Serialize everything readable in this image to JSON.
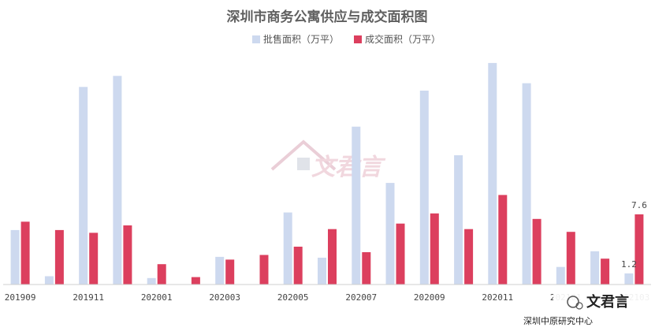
{
  "chart_data": {
    "type": "bar",
    "title": "深圳市商务公寓供应与成交面积图",
    "categories": [
      "201909",
      "201910",
      "201911",
      "201912",
      "202001",
      "202002",
      "202003",
      "202004",
      "202005",
      "202006",
      "202007",
      "202008",
      "202009",
      "202010",
      "202011",
      "202012",
      "202101",
      "202102",
      "202103"
    ],
    "x_tick_labels": [
      "201909",
      "201911",
      "202001",
      "202003",
      "202005",
      "202007",
      "202009",
      "202011",
      "202101",
      "202103"
    ],
    "x_tick_indices": [
      0,
      2,
      4,
      6,
      8,
      10,
      12,
      14,
      16,
      18
    ],
    "series": [
      {
        "name": "批售面积（万平）",
        "color": "#cdd9ef",
        "values": [
          5.9,
          0.9,
          21.4,
          22.6,
          0.7,
          0.0,
          3.0,
          0.0,
          7.8,
          2.9,
          17.1,
          11.0,
          21.0,
          14.0,
          24.0,
          21.8,
          1.9,
          3.6,
          1.2
        ]
      },
      {
        "name": "成交面积（万平）",
        "color": "#dc3f5e",
        "values": [
          6.8,
          5.9,
          5.6,
          6.4,
          2.2,
          0.8,
          2.7,
          3.2,
          4.1,
          6.0,
          3.5,
          6.6,
          7.7,
          6.0,
          9.7,
          7.1,
          5.7,
          2.8,
          7.6
        ]
      }
    ],
    "data_labels": [
      {
        "series": 0,
        "index": 18,
        "text": "1.2"
      },
      {
        "series": 1,
        "index": 18,
        "text": "7.6"
      }
    ],
    "ylim": [
      0,
      24.5
    ],
    "grid": false,
    "legend_position": "top-center"
  },
  "watermark": {
    "text": "文君言"
  },
  "branding": {
    "name": "文君言",
    "source": "深圳中原研究中心"
  }
}
